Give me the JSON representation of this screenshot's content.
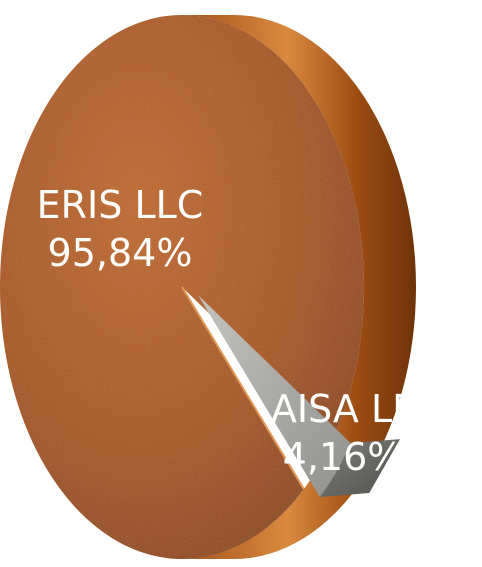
{
  "chart_data": {
    "type": "pie",
    "title": "",
    "slices": [
      {
        "label": "ERIS LLC",
        "value_text": "95,84%",
        "value": 95.84,
        "color": "#b8621d"
      },
      {
        "label": "AISA LP",
        "value_text": "4,16%",
        "value": 4.16,
        "color": "#9a9a96"
      }
    ],
    "legend": "none",
    "style": "3d"
  }
}
